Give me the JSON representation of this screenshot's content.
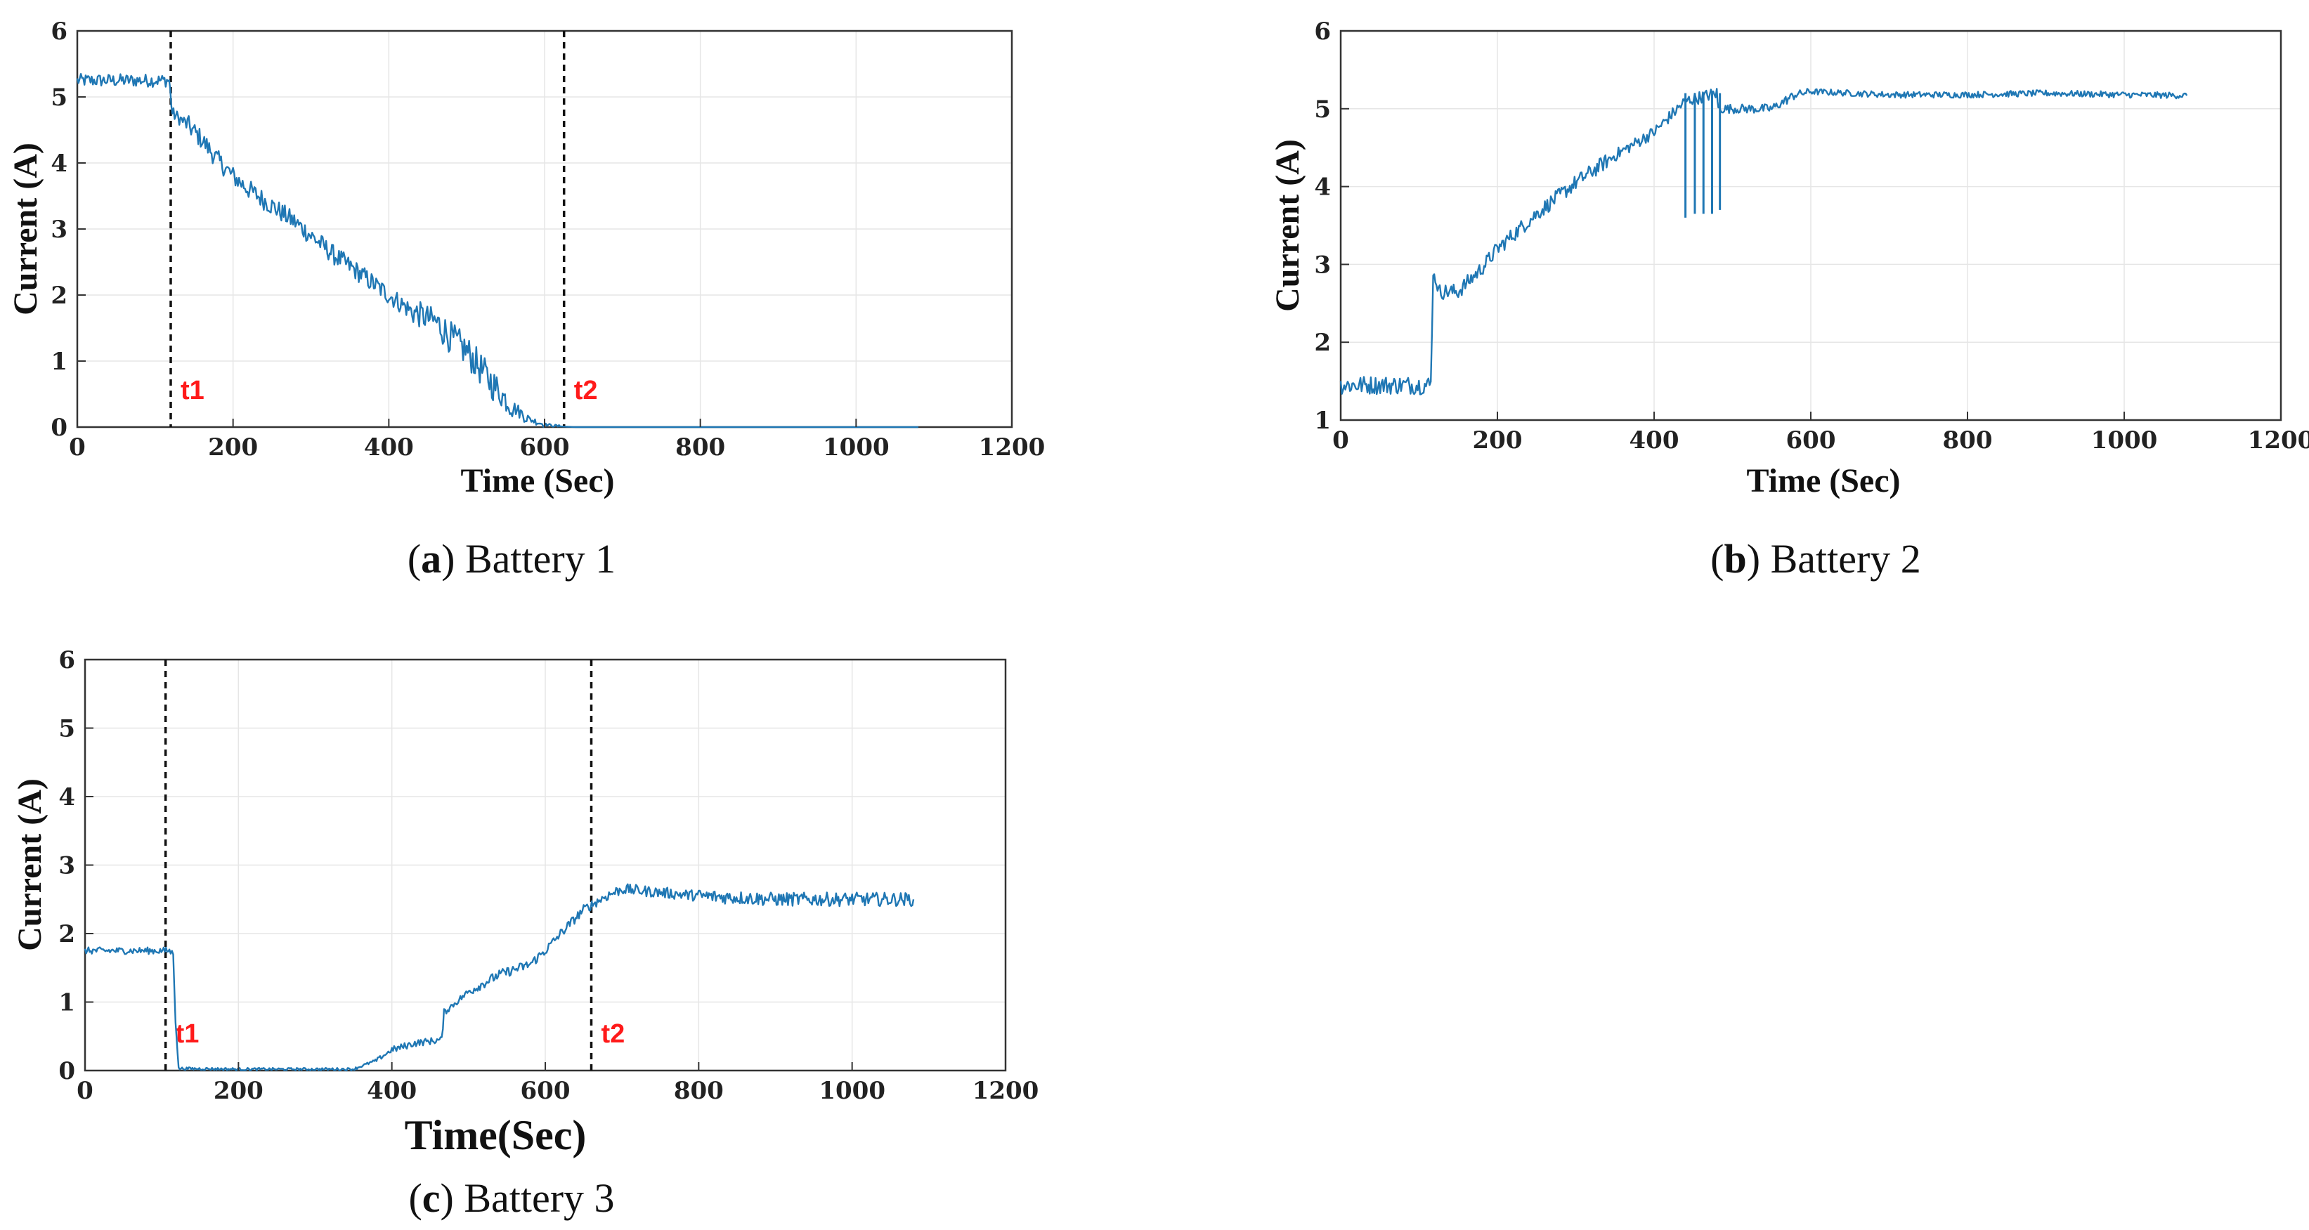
{
  "chart_data": [
    {
      "id": "a",
      "type": "line",
      "caption_letter": "a",
      "caption_text": "Battery 1",
      "xlabel": "Time (Sec)",
      "ylabel": "Current (A)",
      "xlim": [
        0,
        1200
      ],
      "ylim": [
        0,
        6
      ],
      "xticks": [
        0,
        200,
        400,
        600,
        800,
        1000,
        1200
      ],
      "yticks": [
        0,
        1,
        2,
        3,
        4,
        5,
        6
      ],
      "grid": true,
      "line_color": "#1f77b4",
      "markers": [
        {
          "label": "t1",
          "x": 120
        },
        {
          "label": "t2",
          "x": 625
        }
      ],
      "series": [
        {
          "x": [
            0,
            20,
            40,
            60,
            80,
            100,
            118,
            122,
            140,
            160,
            180,
            200,
            220,
            250,
            280,
            300,
            330,
            360,
            400,
            430,
            460,
            480,
            500,
            520,
            540,
            560,
            580,
            600,
            620,
            640,
            700,
            800,
            900,
            1000,
            1080
          ],
          "values": [
            5.25,
            5.25,
            5.25,
            5.25,
            5.25,
            5.25,
            5.25,
            4.75,
            4.6,
            4.35,
            4.05,
            3.8,
            3.6,
            3.35,
            3.1,
            2.9,
            2.6,
            2.35,
            2.0,
            1.75,
            1.6,
            1.35,
            1.15,
            0.85,
            0.55,
            0.3,
            0.12,
            0.04,
            0.01,
            0.0,
            0.0,
            0.0,
            0.0,
            0.0,
            0.0
          ],
          "noise": [
            0.1,
            0.1,
            0.1,
            0.1,
            0.1,
            0.1,
            0.1,
            0.1,
            0.15,
            0.15,
            0.15,
            0.15,
            0.15,
            0.15,
            0.15,
            0.15,
            0.15,
            0.15,
            0.15,
            0.2,
            0.25,
            0.25,
            0.25,
            0.25,
            0.2,
            0.1,
            0.05,
            0.02,
            0,
            0,
            0,
            0,
            0,
            0,
            0
          ]
        }
      ]
    },
    {
      "id": "b",
      "type": "line",
      "caption_letter": "b",
      "caption_text": "Battery 2",
      "xlabel": "Time (Sec)",
      "ylabel": "Current (A)",
      "xlim": [
        0,
        1200
      ],
      "ylim": [
        1,
        6
      ],
      "xticks": [
        0,
        200,
        400,
        600,
        800,
        1000,
        1200
      ],
      "yticks": [
        1,
        2,
        3,
        4,
        5,
        6
      ],
      "grid": true,
      "line_color": "#1f77b4",
      "markers": [],
      "series": [
        {
          "x": [
            0,
            40,
            80,
            115,
            118,
            125,
            150,
            180,
            200,
            250,
            300,
            350,
            400,
            440,
            480,
            482,
            520,
            550,
            580,
            600,
            650,
            700,
            800,
            900,
            1000,
            1080
          ],
          "values": [
            1.45,
            1.45,
            1.45,
            1.45,
            2.9,
            2.65,
            2.65,
            2.95,
            3.2,
            3.65,
            4.05,
            4.4,
            4.7,
            5.1,
            5.2,
            5.0,
            5.0,
            5.0,
            5.18,
            5.22,
            5.2,
            5.18,
            5.18,
            5.2,
            5.18,
            5.17
          ],
          "noise": [
            0.12,
            0.12,
            0.12,
            0.12,
            0.05,
            0.1,
            0.1,
            0.1,
            0.1,
            0.1,
            0.1,
            0.08,
            0.08,
            0.08,
            0.08,
            0.06,
            0.06,
            0.06,
            0.05,
            0.04,
            0.04,
            0.04,
            0.04,
            0.04,
            0.04,
            0.04
          ]
        }
      ],
      "spikes": [
        {
          "x": 440,
          "low": 3.6
        },
        {
          "x": 452,
          "low": 3.65
        },
        {
          "x": 463,
          "low": 3.65
        },
        {
          "x": 474,
          "low": 3.65
        },
        {
          "x": 484,
          "low": 3.7
        }
      ]
    },
    {
      "id": "c",
      "type": "line",
      "caption_letter": "c",
      "caption_text": "Battery 3",
      "xlabel": "Time(Sec)",
      "ylabel": "Current (A)",
      "xlim": [
        0,
        1200
      ],
      "ylim": [
        0,
        6
      ],
      "xticks": [
        0,
        200,
        400,
        600,
        800,
        1000,
        1200
      ],
      "yticks": [
        0,
        1,
        2,
        3,
        4,
        5,
        6
      ],
      "grid": true,
      "line_color": "#1f77b4",
      "markers": [
        {
          "label": "t1",
          "x": 105
        },
        {
          "label": "t2",
          "x": 660
        }
      ],
      "series": [
        {
          "x": [
            0,
            40,
            80,
            110,
            115,
            118,
            122,
            200,
            300,
            350,
            380,
            400,
            430,
            465,
            468,
            500,
            540,
            580,
            600,
            620,
            650,
            680,
            700,
            750,
            800,
            900,
            1000,
            1080
          ],
          "values": [
            1.75,
            1.75,
            1.75,
            1.75,
            1.7,
            0.7,
            0.03,
            0.02,
            0.02,
            0.02,
            0.15,
            0.3,
            0.4,
            0.45,
            0.85,
            1.15,
            1.4,
            1.55,
            1.75,
            2.0,
            2.35,
            2.55,
            2.65,
            2.6,
            2.55,
            2.5,
            2.5,
            2.5
          ],
          "noise": [
            0.05,
            0.05,
            0.05,
            0.05,
            0.03,
            0,
            0.02,
            0.02,
            0.02,
            0.02,
            0.03,
            0.05,
            0.05,
            0.05,
            0.05,
            0.07,
            0.07,
            0.07,
            0.07,
            0.07,
            0.07,
            0.08,
            0.08,
            0.08,
            0.1,
            0.1,
            0.1,
            0.1
          ]
        }
      ]
    }
  ]
}
